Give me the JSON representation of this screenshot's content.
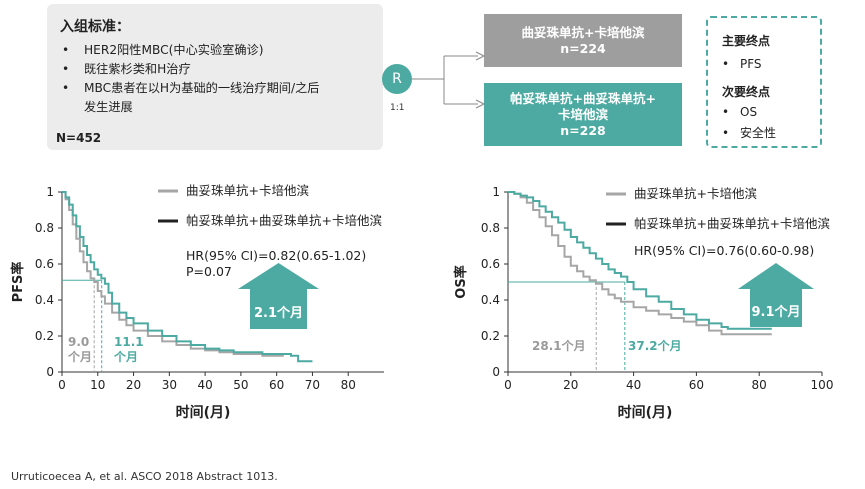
{
  "criteria": {
    "title": "入组标准：",
    "items": [
      "HER2阳性MBC(中心实验室确诊)",
      "既往紫杉类和H治疗",
      "MBC患者在以H为基础的一线治疗期间/之后",
      "发生进展"
    ],
    "n": "N=452"
  },
  "randomization": {
    "symbol": "R",
    "ratio": "1:1"
  },
  "arms": [
    {
      "line1": "曲妥珠单抗+卡培他滨",
      "line2": "",
      "n": "n=224"
    },
    {
      "line1": "帕妥珠单抗+曲妥珠单抗+",
      "line2": "卡培他滨",
      "n": "n=228"
    }
  ],
  "endpoints": {
    "primary_title": "主要终点",
    "primary": [
      "PFS"
    ],
    "secondary_title": "次要终点",
    "secondary": [
      "OS",
      "安全性"
    ]
  },
  "colors": {
    "gray": "#a6a6a6",
    "teal": "#4caaa2",
    "dark": "#222222"
  },
  "chart_data": [
    {
      "type": "line",
      "title": "PFS",
      "xlabel": "时间(月)",
      "ylabel": "PFS率",
      "xlim": [
        0,
        90
      ],
      "ylim": [
        0,
        1
      ],
      "xticks": [
        "0",
        "10",
        "20",
        "30",
        "40",
        "50",
        "60",
        "70",
        "80"
      ],
      "yticks": [
        "0",
        "0.2",
        "0.4",
        "0.6",
        "0.8",
        "1"
      ],
      "legend": [
        "曲妥珠单抗+卡培他滨",
        "帕妥珠单抗+曲妥珠单抗+卡培他滨"
      ],
      "hr_text": "HR(95% CI)=0.82(0.65-1.02)",
      "p_text": "P=0.07",
      "median_line_y": 0.51,
      "series": [
        {
          "name": "曲妥珠单抗+卡培他滨",
          "color": "#a6a6a6",
          "x": [
            0,
            1,
            2,
            3,
            4,
            5,
            6,
            7,
            8,
            9,
            10,
            11,
            12,
            14,
            16,
            18,
            20,
            24,
            28,
            32,
            36,
            40,
            44,
            48,
            52,
            56,
            60,
            62
          ],
          "y": [
            1,
            0.96,
            0.9,
            0.82,
            0.74,
            0.67,
            0.61,
            0.56,
            0.52,
            0.5,
            0.45,
            0.42,
            0.38,
            0.33,
            0.29,
            0.26,
            0.23,
            0.2,
            0.17,
            0.15,
            0.13,
            0.12,
            0.11,
            0.1,
            0.1,
            0.09,
            0.09,
            0.09
          ]
        },
        {
          "name": "帕妥珠单抗+曲妥珠单抗+卡培他滨",
          "color": "#4caaa2",
          "x": [
            0,
            1,
            2,
            3,
            4,
            5,
            6,
            7,
            8,
            9,
            10,
            11,
            12,
            13,
            14,
            16,
            18,
            20,
            24,
            28,
            32,
            36,
            40,
            44,
            48,
            52,
            56,
            60,
            64,
            66,
            70
          ],
          "y": [
            1,
            0.97,
            0.93,
            0.87,
            0.81,
            0.75,
            0.7,
            0.65,
            0.61,
            0.57,
            0.54,
            0.52,
            0.49,
            0.44,
            0.38,
            0.33,
            0.3,
            0.27,
            0.23,
            0.2,
            0.17,
            0.15,
            0.13,
            0.12,
            0.11,
            0.11,
            0.1,
            0.1,
            0.09,
            0.06,
            0.06
          ]
        }
      ],
      "medians": [
        {
          "value": "9.0",
          "unit": "个月",
          "x": 9.0
        },
        {
          "value": "11.1",
          "unit": "个月",
          "x": 11.1
        }
      ],
      "arrow_label": "2.1个月"
    },
    {
      "type": "line",
      "title": "OS",
      "xlabel": "时间(月)",
      "ylabel": "OS率",
      "xlim": [
        0,
        100
      ],
      "ylim": [
        0,
        1
      ],
      "xticks": [
        "0",
        "20",
        "40",
        "60",
        "80",
        "100"
      ],
      "yticks": [
        "0",
        "0.2",
        "0.4",
        "0.6",
        "0.8",
        "1"
      ],
      "legend": [
        "曲妥珠单抗+卡培他滨",
        "帕妥珠单抗+曲妥珠单抗+卡培他滨"
      ],
      "hr_text": "HR(95% CI)=0.76(0.60-0.98)",
      "median_line_y": 0.5,
      "series": [
        {
          "name": "曲妥珠单抗+卡培他滨",
          "color": "#a6a6a6",
          "x": [
            0,
            2,
            4,
            6,
            8,
            10,
            12,
            14,
            16,
            18,
            20,
            22,
            24,
            26,
            28,
            30,
            32,
            34,
            36,
            40,
            44,
            48,
            52,
            56,
            60,
            64,
            68,
            72,
            76,
            80,
            84
          ],
          "y": [
            1,
            0.99,
            0.97,
            0.94,
            0.9,
            0.86,
            0.81,
            0.76,
            0.7,
            0.64,
            0.59,
            0.56,
            0.53,
            0.51,
            0.49,
            0.46,
            0.43,
            0.41,
            0.39,
            0.36,
            0.34,
            0.32,
            0.3,
            0.28,
            0.26,
            0.23,
            0.21,
            0.21,
            0.21,
            0.21,
            0.21
          ]
        },
        {
          "name": "帕妥珠单抗+曲妥珠单抗+卡培他滨",
          "color": "#4caaa2",
          "x": [
            0,
            2,
            4,
            6,
            8,
            10,
            12,
            14,
            16,
            18,
            20,
            22,
            24,
            26,
            28,
            30,
            32,
            34,
            36,
            38,
            40,
            44,
            48,
            52,
            56,
            60,
            64,
            68,
            70,
            74,
            80,
            84
          ],
          "y": [
            1,
            0.99,
            0.98,
            0.97,
            0.95,
            0.92,
            0.89,
            0.86,
            0.83,
            0.79,
            0.75,
            0.72,
            0.69,
            0.66,
            0.63,
            0.6,
            0.57,
            0.55,
            0.53,
            0.5,
            0.46,
            0.42,
            0.39,
            0.35,
            0.32,
            0.29,
            0.27,
            0.25,
            0.24,
            0.24,
            0.24,
            0.24
          ]
        }
      ],
      "medians": [
        {
          "value": "28.1",
          "unit": "个月",
          "x": 28.1
        },
        {
          "value": "37.2",
          "unit": "个月",
          "x": 37.2
        }
      ],
      "arrow_label": "9.1个月"
    }
  ],
  "reference": "Urruticoecea A, et al. ASCO 2018 Abstract 1013."
}
